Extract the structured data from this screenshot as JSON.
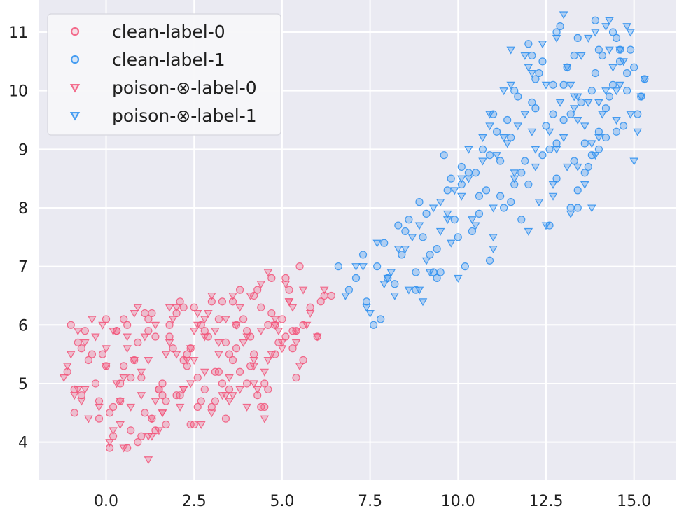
{
  "chart_data": {
    "type": "scatter",
    "title": "",
    "xlabel": "",
    "ylabel": "",
    "xlim": [
      -1.9,
      16.2
    ],
    "ylim": [
      3.35,
      11.55
    ],
    "x_ticks": [
      0.0,
      2.5,
      5.0,
      7.5,
      10.0,
      12.5,
      15.0
    ],
    "x_tick_labels": [
      "0.0",
      "2.5",
      "5.0",
      "7.5",
      "10.0",
      "12.5",
      "15.0"
    ],
    "y_ticks": [
      4,
      5,
      6,
      7,
      8,
      9,
      10,
      11
    ],
    "y_tick_labels": [
      "4",
      "5",
      "6",
      "7",
      "8",
      "9",
      "10",
      "11"
    ],
    "grid": true,
    "legend_position": "top-left",
    "colors": {
      "plot_bg": "#eaeaf2",
      "grid": "#ffffff",
      "label0": "#f2557a",
      "label1": "#2a8ef0"
    },
    "series": [
      {
        "name": "clean-label-0",
        "marker": "circle",
        "color": "#f2557a",
        "x": [
          -1.1,
          -0.9,
          -0.7,
          -0.5,
          -0.3,
          -0.2,
          0.0,
          0.1,
          0.3,
          0.5,
          0.7,
          0.9,
          1.1,
          1.3,
          1.6,
          1.8,
          2.0,
          2.3,
          2.5,
          2.7,
          2.9,
          3.1,
          3.3,
          3.5,
          3.7,
          3.9,
          4.1,
          4.3,
          4.5,
          4.7,
          4.9,
          5.1,
          5.3,
          5.5,
          5.8,
          6.0,
          6.2,
          -1.0,
          -0.6,
          -0.1,
          0.2,
          0.6,
          1.0,
          1.4,
          1.7,
          2.1,
          2.4,
          2.8,
          3.2,
          3.6,
          4.0,
          4.4,
          4.8,
          5.2,
          5.6,
          -0.8,
          -0.4,
          0.4,
          0.8,
          1.2,
          1.5,
          1.9,
          2.2,
          2.6,
          3.0,
          3.4,
          3.8,
          4.2,
          4.6,
          5.0,
          5.4,
          -0.9,
          0.0,
          0.5,
          1.0,
          1.6,
          2.0,
          2.5,
          3.0,
          3.5,
          4.0,
          4.5,
          -0.7,
          -0.2,
          0.3,
          0.9,
          1.3,
          1.8,
          2.3,
          2.8,
          3.3,
          3.8,
          4.3,
          4.8,
          5.3,
          0.1,
          0.7,
          1.2,
          1.7,
          2.2,
          2.7,
          3.2,
          3.7,
          4.2,
          4.7,
          5.6,
          6.1,
          0.4,
          1.4,
          2.4,
          3.4,
          4.4,
          5.4,
          6.4,
          0.2,
          1.1,
          2.1,
          3.1,
          4.1,
          5.1,
          0.6,
          1.5,
          2.6,
          3.6,
          4.6
        ],
        "y": [
          5.2,
          4.9,
          5.6,
          5.4,
          5.0,
          4.7,
          6.1,
          4.5,
          5.9,
          5.3,
          4.2,
          5.7,
          6.2,
          4.4,
          5.0,
          6.0,
          4.8,
          5.5,
          6.3,
          4.7,
          5.8,
          5.2,
          6.4,
          4.9,
          5.6,
          6.1,
          5.3,
          6.6,
          5.0,
          6.2,
          5.7,
          6.8,
          5.9,
          7.0,
          6.3,
          5.8,
          6.5,
          6.0,
          5.9,
          5.5,
          4.6,
          6.0,
          5.1,
          5.8,
          4.3,
          6.4,
          5.6,
          4.9,
          6.1,
          5.4,
          5.9,
          6.3,
          5.5,
          6.6,
          6.0,
          5.7,
          5.5,
          4.7,
          5.4,
          5.9,
          4.9,
          5.6,
          6.3,
          5.1,
          4.6,
          5.7,
          5.2,
          6.5,
          4.9,
          6.1,
          5.9,
          4.5,
          5.3,
          6.1,
          4.1,
          4.8,
          6.2,
          4.3,
          6.4,
          5.5,
          5.0,
          4.6,
          4.8,
          4.4,
          5.9,
          4.0,
          6.2,
          5.8,
          5.3,
          5.9,
          5.0,
          6.6,
          4.8,
          6.0,
          5.6,
          3.9,
          5.1,
          6.1,
          4.7,
          5.4,
          6.0,
          5.2,
          6.0,
          5.5,
          6.8,
          5.4,
          6.4,
          5.0,
          4.2,
          4.3,
          4.4,
          4.6,
          5.1,
          6.5,
          4.1,
          4.5,
          4.8,
          4.7,
          5.8,
          5.8,
          3.9,
          4.9,
          4.6,
          6.4,
          6.0
        ]
      },
      {
        "name": "clean-label-1",
        "marker": "circle",
        "color": "#2a8ef0",
        "x": [
          6.6,
          6.9,
          7.3,
          7.6,
          7.9,
          8.2,
          8.5,
          8.8,
          9.1,
          9.4,
          9.7,
          10.0,
          10.3,
          10.6,
          10.9,
          11.2,
          11.5,
          11.8,
          12.1,
          12.4,
          12.7,
          13.0,
          13.3,
          13.6,
          13.9,
          14.2,
          14.5,
          14.8,
          15.1,
          7.1,
          7.7,
          8.3,
          8.9,
          9.5,
          10.1,
          10.7,
          11.3,
          11.9,
          12.5,
          13.1,
          13.7,
          14.3,
          14.9,
          7.4,
          8.0,
          8.6,
          9.2,
          9.8,
          10.4,
          11.0,
          11.6,
          12.2,
          12.8,
          13.4,
          14.0,
          14.6,
          15.2,
          8.4,
          9.0,
          9.6,
          10.2,
          10.8,
          11.4,
          12.0,
          12.6,
          13.2,
          13.8,
          14.4,
          15.0,
          9.3,
          9.9,
          10.5,
          11.1,
          11.7,
          12.3,
          12.9,
          13.5,
          14.1,
          14.7,
          10.6,
          11.2,
          11.8,
          12.4,
          13.0,
          13.6,
          14.2,
          14.8,
          11.6,
          12.2,
          12.8,
          13.4,
          14.0,
          14.6,
          12.0,
          12.6,
          13.2,
          13.8,
          14.4,
          12.8,
          13.4,
          14.0,
          15.3,
          7.8,
          8.8,
          9.4,
          10.1,
          10.9,
          11.5,
          12.1,
          12.7,
          13.3,
          13.9,
          14.5
        ],
        "y": [
          7.0,
          6.6,
          7.2,
          6.0,
          7.4,
          6.7,
          7.6,
          6.9,
          7.9,
          7.3,
          8.3,
          7.5,
          8.6,
          7.9,
          8.9,
          8.2,
          9.2,
          8.6,
          9.8,
          8.9,
          10.1,
          9.5,
          10.6,
          9.1,
          10.3,
          9.7,
          10.9,
          10.0,
          9.6,
          6.8,
          7.0,
          7.7,
          8.1,
          6.9,
          8.4,
          9.0,
          8.0,
          8.8,
          9.4,
          10.4,
          8.7,
          9.9,
          10.7,
          6.4,
          6.8,
          7.8,
          7.2,
          8.5,
          7.6,
          9.6,
          8.4,
          10.2,
          9.1,
          8.3,
          9.3,
          10.5,
          9.9,
          7.2,
          7.5,
          8.9,
          7.0,
          8.3,
          9.5,
          10.8,
          9.0,
          9.6,
          10.0,
          11.0,
          10.4,
          6.9,
          7.8,
          8.6,
          9.3,
          9.9,
          10.3,
          11.1,
          9.8,
          10.6,
          9.4,
          8.2,
          8.8,
          7.8,
          10.5,
          10.1,
          8.6,
          9.2,
          10.3,
          10.0,
          9.7,
          11.0,
          10.9,
          9.0,
          10.7,
          8.4,
          7.7,
          8.0,
          8.9,
          10.1,
          8.5,
          8.0,
          10.7,
          10.2,
          6.1,
          6.6,
          6.8,
          8.7,
          7.1,
          8.1,
          10.6,
          9.6,
          8.8,
          11.2,
          9.3
        ]
      },
      {
        "name": "poison-⊗-label-0",
        "marker": "triangle-down",
        "color": "#f2557a",
        "x": [
          -1.2,
          -1.0,
          -0.8,
          -0.6,
          -0.4,
          -0.2,
          0.0,
          0.2,
          0.4,
          0.6,
          0.8,
          1.0,
          1.2,
          1.4,
          1.6,
          1.8,
          2.0,
          2.2,
          2.4,
          2.6,
          2.8,
          3.0,
          3.2,
          3.4,
          3.6,
          3.8,
          4.0,
          4.2,
          4.4,
          4.6,
          4.8,
          5.0,
          5.2,
          5.4,
          5.6,
          5.8,
          6.0,
          -1.1,
          -0.7,
          -0.3,
          0.1,
          0.5,
          0.9,
          1.3,
          1.7,
          2.1,
          2.5,
          2.9,
          3.3,
          3.7,
          4.1,
          4.5,
          4.9,
          5.3,
          5.7,
          -0.9,
          -0.5,
          -0.1,
          0.3,
          0.7,
          1.1,
          1.5,
          1.9,
          2.3,
          2.7,
          3.1,
          3.5,
          3.9,
          4.3,
          4.7,
          5.1,
          5.5,
          -0.8,
          0.0,
          0.6,
          1.2,
          1.8,
          2.4,
          3.0,
          3.6,
          4.2,
          4.8,
          5.4,
          0.2,
          0.8,
          1.4,
          2.0,
          2.6,
          3.2,
          3.8,
          4.4,
          5.0,
          6.2,
          1.0,
          2.2,
          3.4,
          4.6,
          0.4,
          1.6,
          2.8,
          4.0,
          5.2,
          -0.6,
          0.5,
          1.3,
          2.5,
          3.5,
          4.5,
          1.2,
          2.8,
          4.2
        ],
        "y": [
          5.1,
          5.5,
          4.9,
          5.7,
          6.1,
          4.6,
          5.3,
          5.9,
          4.3,
          5.6,
          6.2,
          4.8,
          5.4,
          6.0,
          4.5,
          5.7,
          6.3,
          4.9,
          5.6,
          6.0,
          5.2,
          6.5,
          5.5,
          6.1,
          4.8,
          6.3,
          5.8,
          5.0,
          6.7,
          5.4,
          6.1,
          5.6,
          6.4,
          5.9,
          6.6,
          6.2,
          5.8,
          5.3,
          4.7,
          5.8,
          4.0,
          5.1,
          6.3,
          4.4,
          5.5,
          4.6,
          5.9,
          6.2,
          4.8,
          6.0,
          6.5,
          5.2,
          5.9,
          6.3,
          6.0,
          4.8,
          4.4,
          6.0,
          5.0,
          4.6,
          5.8,
          4.2,
          6.1,
          5.4,
          4.3,
          5.9,
          4.7,
          5.7,
          4.9,
          5.5,
          6.7,
          5.3,
          5.9,
          5.6,
          5.8,
          4.1,
          6.3,
          5.0,
          4.5,
          6.5,
          5.3,
          6.0,
          5.7,
          4.2,
          5.4,
          4.7,
          5.5,
          6.2,
          5.7,
          4.9,
          5.9,
          5.7,
          6.6,
          5.2,
          4.9,
          4.8,
          6.9,
          4.7,
          4.5,
          6.1,
          4.6,
          6.4,
          4.9,
          3.9,
          4.1,
          5.4,
          5.1,
          4.4,
          3.7,
          5.8,
          5.4
        ]
      },
      {
        "name": "poison-⊗-label-1",
        "marker": "triangle-down",
        "color": "#2a8ef0",
        "x": [
          6.8,
          7.1,
          7.4,
          7.7,
          8.0,
          8.3,
          8.6,
          8.9,
          9.2,
          9.5,
          9.8,
          10.1,
          10.4,
          10.7,
          11.0,
          11.3,
          11.6,
          11.9,
          12.2,
          12.5,
          12.8,
          13.1,
          13.4,
          13.7,
          14.0,
          14.3,
          14.6,
          14.9,
          15.2,
          7.5,
          8.1,
          8.7,
          9.3,
          9.9,
          10.5,
          11.1,
          11.7,
          12.3,
          12.9,
          13.5,
          14.1,
          14.7,
          15.3,
          7.9,
          8.5,
          9.1,
          9.7,
          10.3,
          10.9,
          11.5,
          12.1,
          12.7,
          13.3,
          13.9,
          14.5,
          15.1,
          8.9,
          9.5,
          10.1,
          10.7,
          11.3,
          11.9,
          12.5,
          13.1,
          13.7,
          14.3,
          14.9,
          9.7,
          10.3,
          10.9,
          11.5,
          12.1,
          12.7,
          13.3,
          13.9,
          14.5,
          11.0,
          11.6,
          12.2,
          12.8,
          13.4,
          14.0,
          14.6,
          11.4,
          12.0,
          12.6,
          13.2,
          13.8,
          14.4,
          12.4,
          13.0,
          13.6,
          14.2,
          14.8,
          13.0,
          13.4,
          13.8,
          14.2,
          15.0,
          7.3,
          8.2,
          9.0,
          10.0,
          11.0,
          12.0,
          13.2,
          13.6
        ],
        "y": [
          6.5,
          7.0,
          6.3,
          7.4,
          6.8,
          7.3,
          6.6,
          7.7,
          6.9,
          8.1,
          7.4,
          8.5,
          7.8,
          8.8,
          8.0,
          9.2,
          8.5,
          9.6,
          8.7,
          10.1,
          9.0,
          10.4,
          9.5,
          10.9,
          9.2,
          10.7,
          10.1,
          11.0,
          9.9,
          6.2,
          6.9,
          7.5,
          8.0,
          8.3,
          7.7,
          8.9,
          9.4,
          8.1,
          9.8,
          10.6,
          9.6,
          10.5,
          10.2,
          6.7,
          7.3,
          7.1,
          7.8,
          9.0,
          9.6,
          10.1,
          9.3,
          8.4,
          9.7,
          11.0,
          9.5,
          9.3,
          6.6,
          7.6,
          8.2,
          9.2,
          10.0,
          10.6,
          7.7,
          8.7,
          9.8,
          11.2,
          9.6,
          7.9,
          8.5,
          9.4,
          10.7,
          10.3,
          8.2,
          9.9,
          8.9,
          10.0,
          7.5,
          8.6,
          9.0,
          10.9,
          8.7,
          9.8,
          10.7,
          9.1,
          10.4,
          9.3,
          10.1,
          8.0,
          10.4,
          10.8,
          9.2,
          8.4,
          10.0,
          11.1,
          11.3,
          9.9,
          9.1,
          11.1,
          8.8,
          7.0,
          6.5,
          6.4,
          6.8,
          7.3,
          7.6,
          7.9,
          9.4
        ]
      }
    ]
  }
}
